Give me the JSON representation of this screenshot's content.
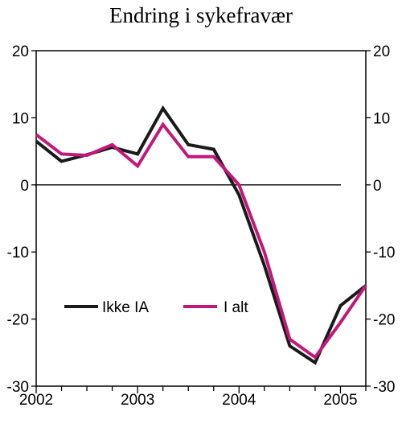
{
  "chart_data": {
    "type": "line",
    "title": "Endring i sykefravær",
    "xlabel": "",
    "ylabel": "",
    "x_range": [
      2002.0,
      2005.25
    ],
    "ylim": [
      -30,
      20
    ],
    "yticks": [
      -30,
      -20,
      -10,
      0,
      10,
      20
    ],
    "xticks": [
      2002,
      2003,
      2004,
      2005
    ],
    "right_axis_mirror": true,
    "grid": false,
    "zero_line": true,
    "legend_position": "lower-left inside plot",
    "series": [
      {
        "name": "Ikke IA",
        "color": "#1a1a1a",
        "x": [
          2002.0,
          2002.25,
          2002.5,
          2002.75,
          2003.0,
          2003.25,
          2003.5,
          2003.75,
          2004.0,
          2004.25,
          2004.5,
          2004.75,
          2005.0,
          2005.25
        ],
        "values": [
          6.5,
          3.5,
          4.5,
          5.6,
          4.6,
          11.4,
          6.0,
          5.3,
          -1.5,
          -12.0,
          -24.0,
          -26.5,
          -18.0,
          -15.0
        ]
      },
      {
        "name": "I alt",
        "color": "#c2187a",
        "x": [
          2002.0,
          2002.25,
          2002.5,
          2002.75,
          2003.0,
          2003.25,
          2003.5,
          2003.75,
          2004.0,
          2004.25,
          2004.5,
          2004.75,
          2005.0,
          2005.25
        ],
        "values": [
          7.5,
          4.6,
          4.4,
          6.0,
          2.8,
          9.0,
          4.2,
          4.2,
          0.0,
          -10.0,
          -23.0,
          -25.7,
          -20.5,
          -15.0
        ]
      }
    ]
  }
}
